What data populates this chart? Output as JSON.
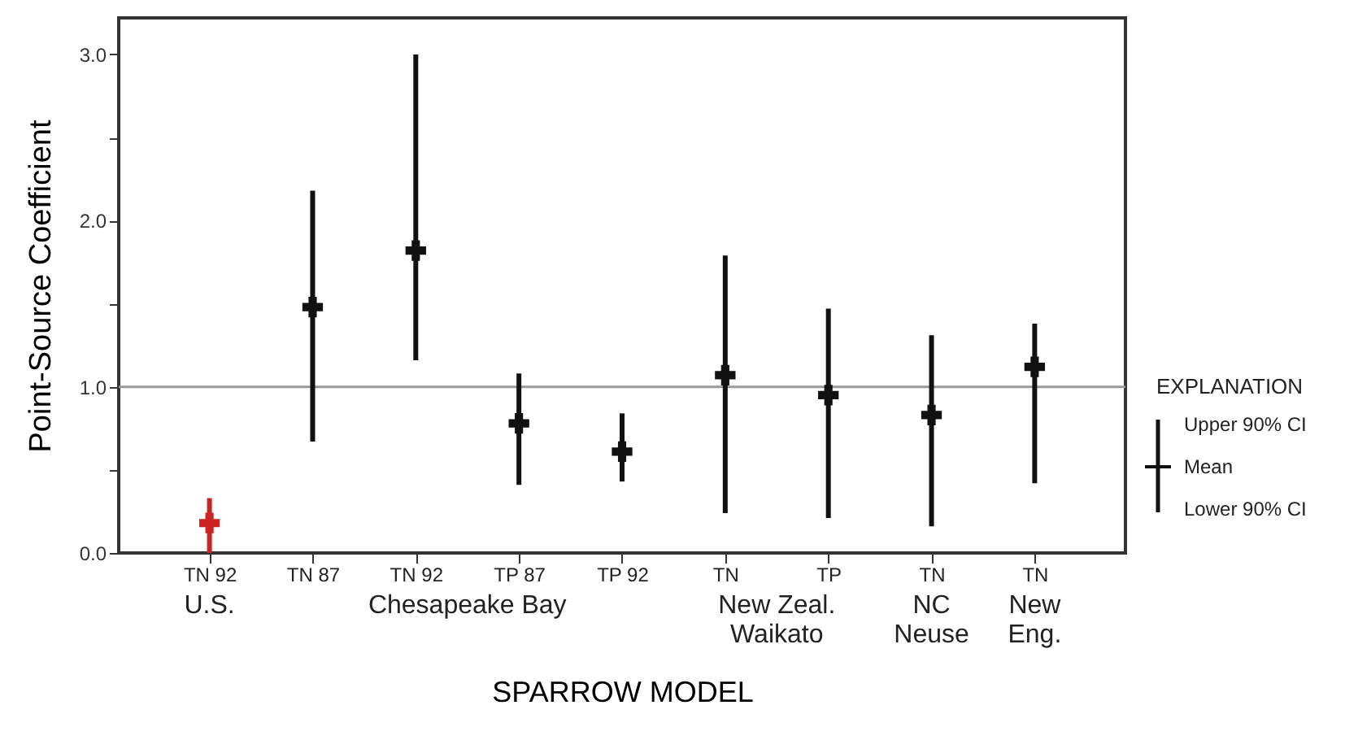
{
  "chart_data": {
    "type": "scatter",
    "categories": [
      "TN 92",
      "TN 87",
      "TN 92",
      "TP 87",
      "TP 92",
      "TN",
      "TP",
      "TN",
      "TN"
    ],
    "values": [
      0.18,
      1.48,
      1.82,
      0.78,
      0.61,
      1.07,
      0.95,
      0.83,
      1.12
    ],
    "errors": [
      [
        0.0,
        0.33
      ],
      [
        0.67,
        2.18
      ],
      [
        1.16,
        3.0
      ],
      [
        0.41,
        1.08
      ],
      [
        0.43,
        0.84
      ],
      [
        0.24,
        1.79
      ],
      [
        0.21,
        1.47
      ],
      [
        0.16,
        1.31
      ],
      [
        0.42,
        1.38
      ]
    ],
    "colors": [
      "#cc2222",
      "#111111",
      "#111111",
      "#111111",
      "#111111",
      "#111111",
      "#111111",
      "#111111",
      "#111111"
    ],
    "ylabel": "Point-Source Coefficient",
    "xlabel": "SPARROW MODEL",
    "ylim": [
      0,
      3.22
    ],
    "yticks": [
      {
        "value": 0,
        "label": "0.0"
      },
      {
        "value": 0.5,
        "label": null
      },
      {
        "value": 1,
        "label": "1.0"
      },
      {
        "value": 1.5,
        "label": null
      },
      {
        "value": 2,
        "label": "2.0"
      },
      {
        "value": 2.5,
        "label": null
      },
      {
        "value": 3,
        "label": "3.0"
      }
    ],
    "ref_lines": [
      {
        "axis": "y",
        "value": 1.0,
        "color": "#999999"
      }
    ],
    "legend_title": "EXPLANATION",
    "annotations": [
      "U.S.",
      "Chesapeake Bay",
      "New Zeal.\nWaikato",
      "NC\nNeuse",
      "New\nEng.",
      "Upper 90% CI",
      "Mean",
      "Lower 90% CI"
    ],
    "marker": "cross",
    "grid": false
  }
}
